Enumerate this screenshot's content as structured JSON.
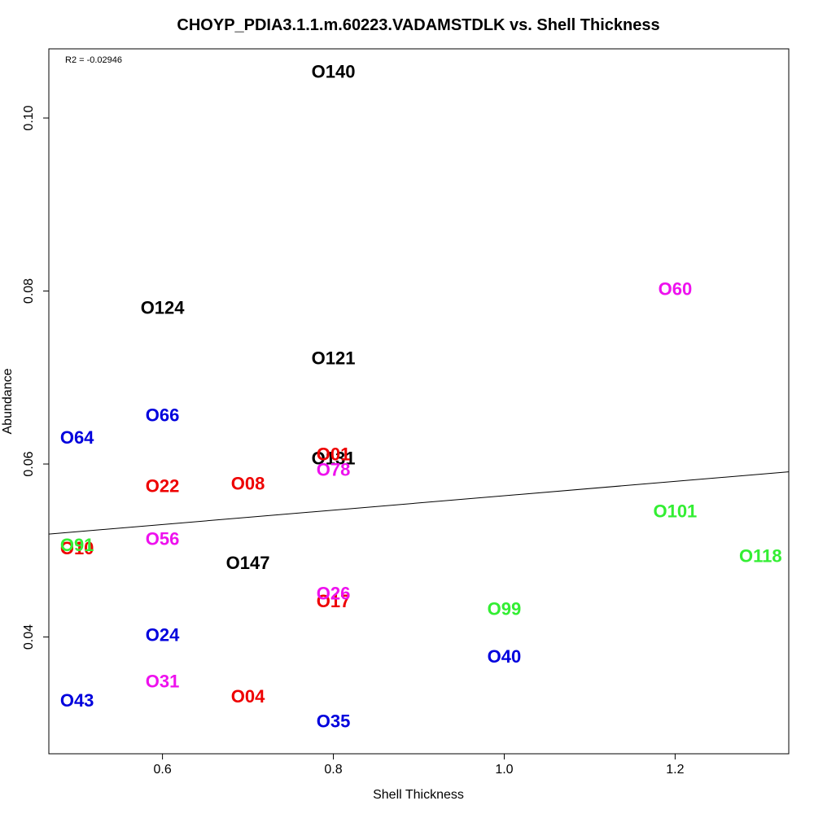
{
  "chart_data": {
    "type": "scatter",
    "title": "CHOYP_PDIA3.1.1.m.60223.VADAMSTDLK vs. Shell Thickness",
    "xlabel": "Shell Thickness",
    "ylabel": "Abundance",
    "annotation": "R2 = -0.02946",
    "xlim": [
      0.467,
      1.333
    ],
    "ylim": [
      0.0265,
      0.108
    ],
    "x_ticks": [
      {
        "value": 0.6,
        "label": "0.6"
      },
      {
        "value": 0.8,
        "label": "0.8"
      },
      {
        "value": 1.0,
        "label": "1.0"
      },
      {
        "value": 1.2,
        "label": "1.2"
      }
    ],
    "y_ticks": [
      {
        "value": 0.04,
        "label": "0.04"
      },
      {
        "value": 0.06,
        "label": "0.06"
      },
      {
        "value": 0.08,
        "label": "0.08"
      },
      {
        "value": 0.1,
        "label": "0.10"
      }
    ],
    "colors": {
      "black": "#000000",
      "blue": "#0000dd",
      "red": "#ee0000",
      "magenta": "#ee11ee",
      "green": "#33ee33"
    },
    "points": [
      {
        "label": "O140",
        "x": 0.8,
        "y": 0.1054,
        "color": "black"
      },
      {
        "label": "O124",
        "x": 0.6,
        "y": 0.0781,
        "color": "black"
      },
      {
        "label": "O121",
        "x": 0.8,
        "y": 0.0723,
        "color": "black"
      },
      {
        "label": "O131",
        "x": 0.8,
        "y": 0.0607,
        "color": "black"
      },
      {
        "label": "O147",
        "x": 0.7,
        "y": 0.0486,
        "color": "black"
      },
      {
        "label": "O66",
        "x": 0.6,
        "y": 0.0657,
        "color": "blue"
      },
      {
        "label": "O64",
        "x": 0.5,
        "y": 0.0631,
        "color": "blue"
      },
      {
        "label": "O24",
        "x": 0.6,
        "y": 0.0403,
        "color": "blue"
      },
      {
        "label": "O43",
        "x": 0.5,
        "y": 0.0327,
        "color": "blue"
      },
      {
        "label": "O35",
        "x": 0.8,
        "y": 0.0303,
        "color": "blue"
      },
      {
        "label": "O40",
        "x": 1.0,
        "y": 0.0378,
        "color": "blue"
      },
      {
        "label": "O01",
        "x": 0.8,
        "y": 0.0612,
        "color": "red"
      },
      {
        "label": "O22",
        "x": 0.6,
        "y": 0.0575,
        "color": "red"
      },
      {
        "label": "O08",
        "x": 0.7,
        "y": 0.0578,
        "color": "red"
      },
      {
        "label": "O10",
        "x": 0.5,
        "y": 0.0503,
        "color": "red"
      },
      {
        "label": "O17",
        "x": 0.8,
        "y": 0.0442,
        "color": "red"
      },
      {
        "label": "O04",
        "x": 0.7,
        "y": 0.0332,
        "color": "red"
      },
      {
        "label": "O78",
        "x": 0.8,
        "y": 0.0594,
        "color": "magenta"
      },
      {
        "label": "O56",
        "x": 0.6,
        "y": 0.0514,
        "color": "magenta"
      },
      {
        "label": "O26",
        "x": 0.8,
        "y": 0.0451,
        "color": "magenta"
      },
      {
        "label": "O31",
        "x": 0.6,
        "y": 0.0349,
        "color": "magenta"
      },
      {
        "label": "O60",
        "x": 1.2,
        "y": 0.0803,
        "color": "magenta"
      },
      {
        "label": "O91",
        "x": 0.5,
        "y": 0.0507,
        "color": "green"
      },
      {
        "label": "O101",
        "x": 1.2,
        "y": 0.0546,
        "color": "green"
      },
      {
        "label": "O118",
        "x": 1.3,
        "y": 0.0494,
        "color": "green"
      },
      {
        "label": "O99",
        "x": 1.0,
        "y": 0.0433,
        "color": "green"
      }
    ],
    "regression_line": {
      "x": [
        0.467,
        1.333
      ],
      "y": [
        0.0519,
        0.0591
      ]
    }
  }
}
